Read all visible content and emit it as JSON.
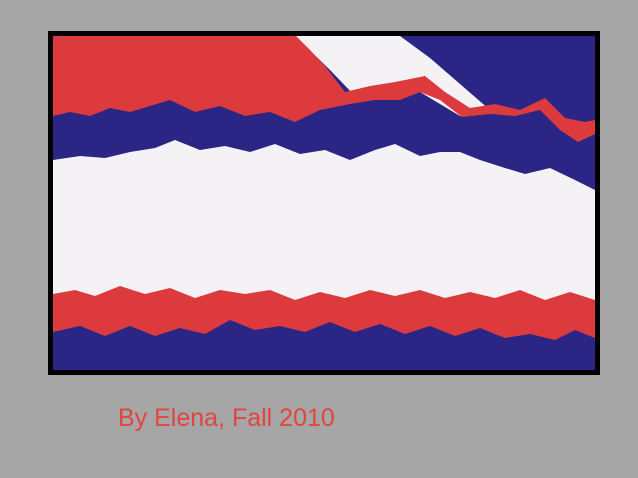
{
  "caption": "By Elena, Fall 2010"
}
